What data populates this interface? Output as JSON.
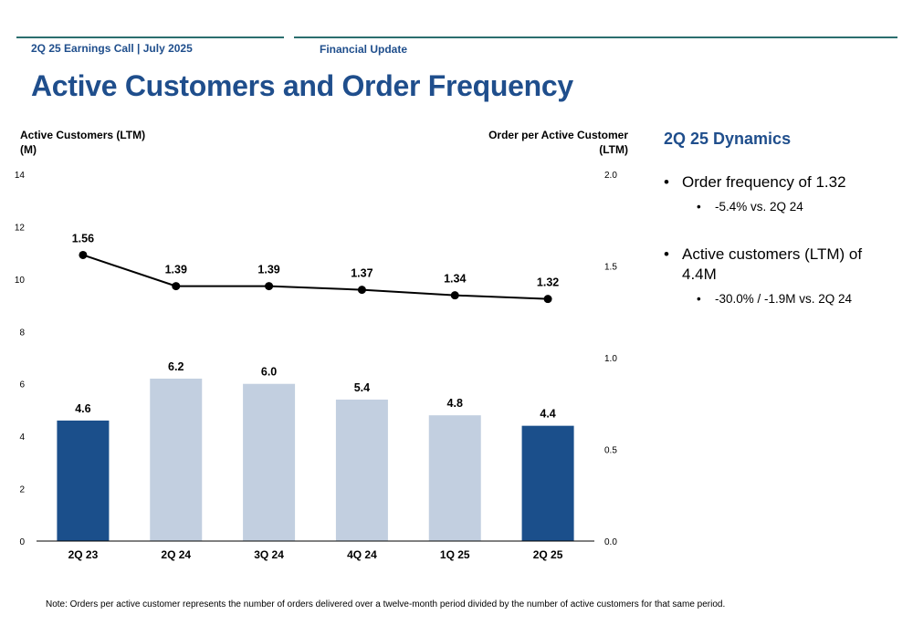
{
  "header": {
    "left": "2Q 25 Earnings Call | July 2025",
    "right": "Financial Update"
  },
  "page_title": "Active Customers and Order Frequency",
  "side_panel": {
    "title": "2Q 25 Dynamics",
    "bullets": [
      {
        "text": "Order frequency of 1.32",
        "sub": "-5.4% vs. 2Q 24"
      },
      {
        "text": "Active customers (LTM) of 4.4M",
        "sub": "-30.0% / -1.9M vs. 2Q 24"
      }
    ]
  },
  "footnote": "Note: Orders per active customer represents the number of orders delivered over a twelve-month period divided by the number of active customers for that same period.",
  "colors": {
    "bar_dark": "#1b4f8b",
    "bar_light": "#c2cfe0",
    "brand_blue": "#1f4e8c",
    "rule": "#2b6e6e"
  },
  "chart_data": {
    "type": "bar",
    "categories": [
      "2Q 23",
      "2Q 24",
      "3Q 24",
      "4Q 24",
      "1Q 25",
      "2Q 25"
    ],
    "highlight": [
      true,
      false,
      false,
      false,
      false,
      true
    ],
    "series": [
      {
        "type": "bar",
        "axis": "left",
        "values": [
          4.6,
          6.2,
          6.0,
          5.4,
          4.8,
          4.4
        ],
        "labels": [
          "4.6",
          "6.2",
          "6.0",
          "5.4",
          "4.8",
          "4.4"
        ]
      },
      {
        "type": "line",
        "axis": "right",
        "values": [
          1.56,
          1.39,
          1.39,
          1.37,
          1.34,
          1.32
        ],
        "labels": [
          "1.56",
          "1.39",
          "1.39",
          "1.37",
          "1.34",
          "1.32"
        ]
      }
    ],
    "y_left": {
      "label_lines": [
        "Active Customers (LTM)",
        "(M)"
      ],
      "ticks": [
        "0",
        "2",
        "4",
        "6",
        "8",
        "10",
        "12",
        "14"
      ],
      "tick_values": [
        0,
        2,
        4,
        6,
        8,
        10,
        12,
        14
      ],
      "range": [
        0,
        14
      ]
    },
    "y_right": {
      "label_lines": [
        "Order per Active Customer",
        "(LTM)"
      ],
      "ticks": [
        "0.0",
        "0.5",
        "1.0",
        "1.5",
        "2.0"
      ],
      "tick_values": [
        0,
        0.5,
        1.0,
        1.5,
        2.0
      ],
      "range": [
        0,
        2.0
      ]
    },
    "grid": false,
    "legend": "none"
  }
}
